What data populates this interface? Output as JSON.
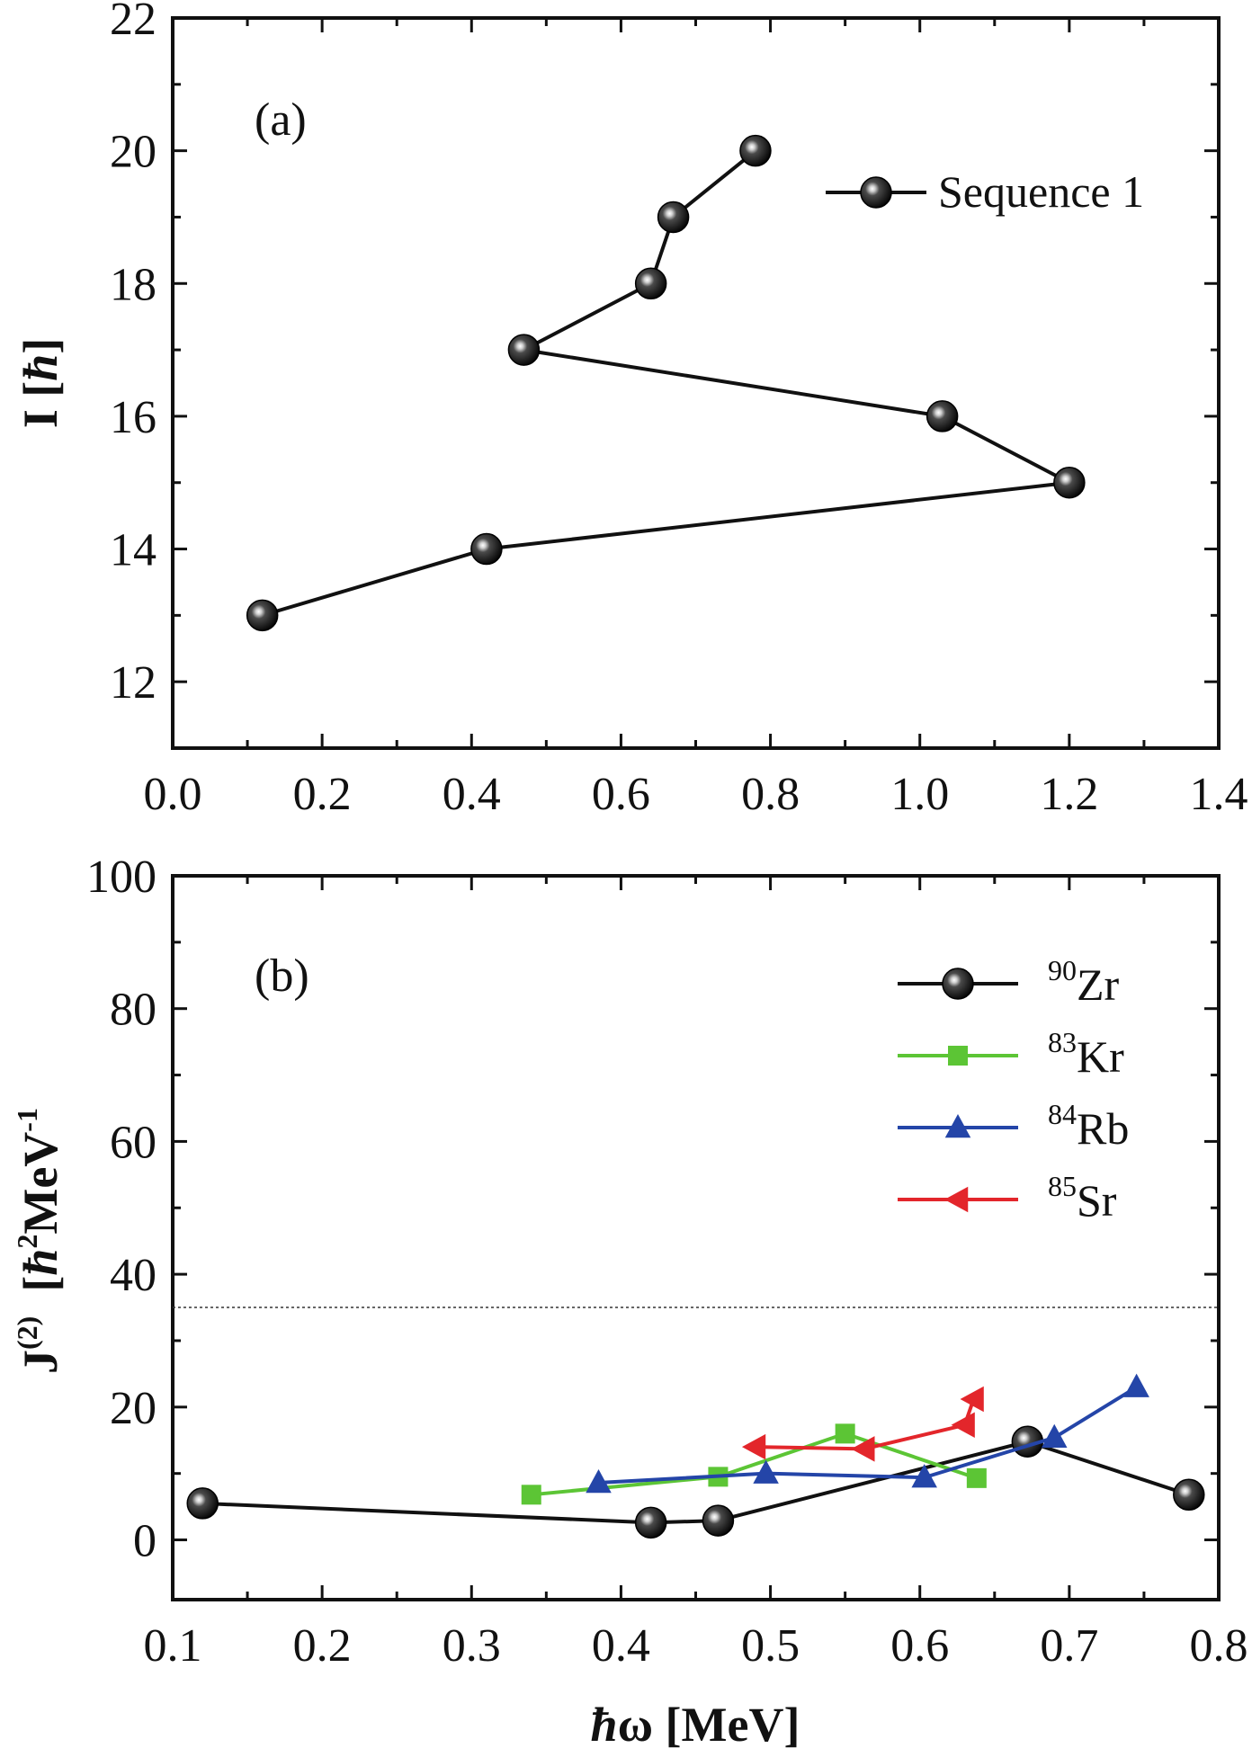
{
  "chart_data": [
    {
      "type": "line",
      "panel_label": "(a)",
      "ylabel": "I [ħ]",
      "xlabel": "",
      "xlim": [
        0.0,
        1.4
      ],
      "ylim": [
        11,
        22
      ],
      "x_ticks": [
        "0.0",
        "0.2",
        "0.4",
        "0.6",
        "0.8",
        "1.0",
        "1.2",
        "1.4"
      ],
      "y_ticks": [
        "12",
        "14",
        "16",
        "18",
        "20",
        "22"
      ],
      "legend_position": "top-right",
      "series": [
        {
          "name": "Sequence 1",
          "color": "#111111",
          "marker": "sphere",
          "x": [
            0.12,
            0.42,
            1.2,
            1.03,
            0.47,
            0.64,
            0.67,
            0.78
          ],
          "y": [
            13,
            14,
            15,
            16,
            17,
            18,
            19,
            20
          ]
        }
      ]
    },
    {
      "type": "line",
      "panel_label": "(b)",
      "ylabel": "J(2) [ħ2MeV-1]",
      "xlabel": "ħω [MeV]",
      "xlim": [
        0.1,
        0.8
      ],
      "ylim": [
        -9,
        100
      ],
      "x_ticks": [
        "0.1",
        "0.2",
        "0.3",
        "0.4",
        "0.5",
        "0.6",
        "0.7",
        "0.8"
      ],
      "y_ticks": [
        "0",
        "20",
        "40",
        "60",
        "80",
        "100"
      ],
      "reference_line_y": 35,
      "legend_position": "top-right",
      "series": [
        {
          "name": "90Zr",
          "color": "#111111",
          "marker": "sphere",
          "x": [
            0.12,
            0.42,
            0.465,
            0.672,
            0.78
          ],
          "y": [
            5.5,
            2.6,
            2.9,
            14.8,
            6.8
          ]
        },
        {
          "name": "83Kr",
          "color": "#5cc535",
          "marker": "square",
          "x": [
            0.34,
            0.465,
            0.55,
            0.638
          ],
          "y": [
            6.8,
            9.5,
            16.0,
            9.3
          ]
        },
        {
          "name": "84Rb",
          "color": "#2445a8",
          "marker": "triangle-up",
          "x": [
            0.385,
            0.497,
            0.603,
            0.69,
            0.745
          ],
          "y": [
            8.6,
            10.0,
            9.4,
            15.4,
            23.0
          ]
        },
        {
          "name": "85Sr",
          "color": "#e3262b",
          "marker": "triangle-left",
          "x": [
            0.49,
            0.563,
            0.63,
            0.636
          ],
          "y": [
            14.0,
            13.7,
            17.3,
            21.2
          ]
        }
      ]
    }
  ]
}
